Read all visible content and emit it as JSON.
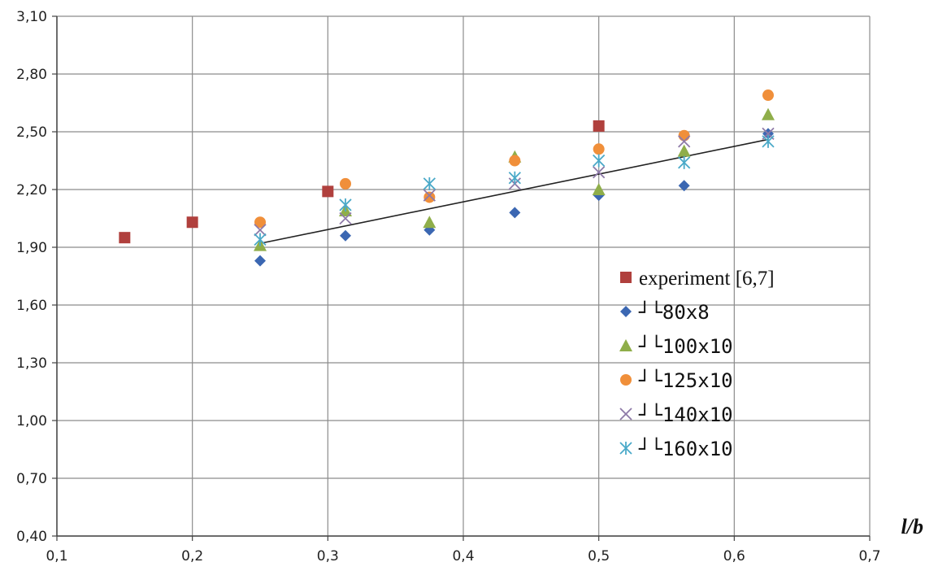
{
  "chart_data": {
    "type": "scatter",
    "title": "",
    "xlabel": "l/b",
    "ylabel": "",
    "xlim": [
      0.1,
      0.7
    ],
    "ylim": [
      0.4,
      3.1
    ],
    "x_ticks": [
      "0,1",
      "0,2",
      "0,3",
      "0,4",
      "0,5",
      "0,6",
      "0,7"
    ],
    "x_tick_values": [
      0.1,
      0.2,
      0.3,
      0.4,
      0.5,
      0.6,
      0.7
    ],
    "y_ticks": [
      "0,40",
      "0,70",
      "1,00",
      "1,30",
      "1,60",
      "1,90",
      "2,20",
      "2,50",
      "2,80",
      "3,10"
    ],
    "y_tick_values": [
      0.4,
      0.7,
      1.0,
      1.3,
      1.6,
      1.9,
      2.2,
      2.5,
      2.8,
      3.1
    ],
    "grid": true,
    "legend_position": "center-right",
    "series": [
      {
        "name": "experiment [6,7]",
        "marker": "square",
        "color": "#b0403d",
        "points": [
          [
            0.15,
            1.95
          ],
          [
            0.2,
            2.03
          ],
          [
            0.3,
            2.19
          ],
          [
            0.5,
            2.53
          ]
        ]
      },
      {
        "name": "┘└80x8",
        "marker": "diamond",
        "color": "#3b67b2",
        "points": [
          [
            0.25,
            1.83
          ],
          [
            0.313,
            1.96
          ],
          [
            0.375,
            1.99
          ],
          [
            0.438,
            2.08
          ],
          [
            0.5,
            2.17
          ],
          [
            0.563,
            2.22
          ],
          [
            0.625,
            2.49
          ]
        ]
      },
      {
        "name": "┘└100x10",
        "marker": "triangle",
        "color": "#8fae4a",
        "points": [
          [
            0.25,
            1.91
          ],
          [
            0.313,
            2.09
          ],
          [
            0.375,
            2.03
          ],
          [
            0.438,
            2.37
          ],
          [
            0.5,
            2.2
          ],
          [
            0.563,
            2.4
          ],
          [
            0.625,
            2.59
          ]
        ]
      },
      {
        "name": "┘└125x10",
        "marker": "circle",
        "color": "#f08f3a",
        "points": [
          [
            0.25,
            2.03
          ],
          [
            0.313,
            2.23
          ],
          [
            0.375,
            2.16
          ],
          [
            0.438,
            2.35
          ],
          [
            0.5,
            2.41
          ],
          [
            0.563,
            2.48
          ],
          [
            0.625,
            2.69
          ]
        ]
      },
      {
        "name": "┘└140x10",
        "marker": "x",
        "color": "#8e7aa8",
        "points": [
          [
            0.25,
            1.99
          ],
          [
            0.313,
            2.05
          ],
          [
            0.375,
            2.17
          ],
          [
            0.438,
            2.23
          ],
          [
            0.5,
            2.29
          ],
          [
            0.563,
            2.45
          ],
          [
            0.625,
            2.49
          ]
        ]
      },
      {
        "name": "┘└160x10",
        "marker": "star",
        "color": "#4aa9c8",
        "points": [
          [
            0.25,
            1.94
          ],
          [
            0.313,
            2.12
          ],
          [
            0.375,
            2.23
          ],
          [
            0.438,
            2.26
          ],
          [
            0.5,
            2.35
          ],
          [
            0.563,
            2.34
          ],
          [
            0.625,
            2.45
          ]
        ]
      }
    ],
    "trendline": {
      "color": "#222222",
      "points": [
        [
          0.25,
          1.92
        ],
        [
          0.625,
          2.46
        ]
      ]
    }
  }
}
